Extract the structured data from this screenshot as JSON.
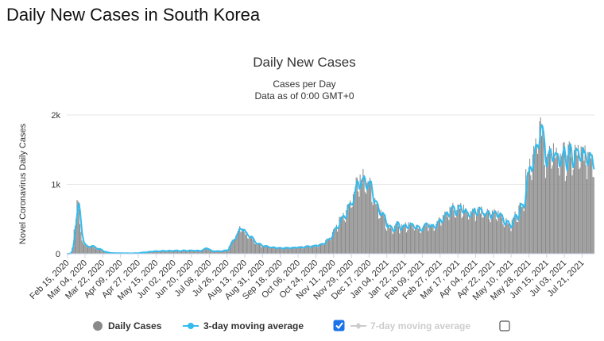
{
  "page": {
    "heading": "Daily New Cases in South Korea"
  },
  "chart_data": {
    "type": "bar",
    "title": "Daily New Cases",
    "subtitle_lines": [
      "Cases per Day",
      "Data as of 0:00 GMT+0"
    ],
    "ylabel": "Novel Coronavirus Daily Cases",
    "xlabel": "",
    "ylim": [
      0,
      2000
    ],
    "yticks": [
      {
        "value": 0,
        "label": "0"
      },
      {
        "value": 1000,
        "label": "1k"
      },
      {
        "value": 2000,
        "label": "2k"
      }
    ],
    "date_range": [
      "2020-02-15",
      "2021-08-02"
    ],
    "x_tick_labels": [
      "Feb 15, 2020",
      "Mar 04, 2020",
      "Mar 22, 2020",
      "Apr 09, 2020",
      "Apr 27, 2020",
      "May 15, 2020",
      "Jun 02, 2020",
      "Jun 20, 2020",
      "Jul 08, 2020",
      "Jul 26, 2020",
      "Aug 13, 2020",
      "Aug 31, 2020",
      "Sep 18, 2020",
      "Oct 06, 2020",
      "Oct 24, 2020",
      "Nov 11, 2020",
      "Nov 29, 2020",
      "Dec 17, 2020",
      "Jan 04, 2021",
      "Jan 22, 2021",
      "Feb 09, 2021",
      "Feb 27, 2021",
      "Mar 17, 2021",
      "Apr 04, 2021",
      "Apr 22, 2021",
      "May 10, 2021",
      "May 28, 2021",
      "Jun 15, 2021",
      "Jul 03, 2021",
      "Jul 21, 2021"
    ],
    "series_anchor_note": "daily values estimated from chart; anchors as [day index from Feb 15 2020, cases]",
    "daily_anchors": [
      [
        0,
        0
      ],
      [
        2,
        2
      ],
      [
        4,
        20
      ],
      [
        6,
        150
      ],
      [
        8,
        480
      ],
      [
        10,
        780
      ],
      [
        12,
        600
      ],
      [
        14,
        300
      ],
      [
        17,
        140
      ],
      [
        20,
        100
      ],
      [
        24,
        120
      ],
      [
        28,
        90
      ],
      [
        32,
        70
      ],
      [
        36,
        40
      ],
      [
        40,
        20
      ],
      [
        45,
        10
      ],
      [
        55,
        8
      ],
      [
        65,
        6
      ],
      [
        72,
        12
      ],
      [
        78,
        20
      ],
      [
        85,
        35
      ],
      [
        95,
        40
      ],
      [
        105,
        45
      ],
      [
        115,
        45
      ],
      [
        125,
        50
      ],
      [
        135,
        45
      ],
      [
        141,
        90
      ],
      [
        145,
        40
      ],
      [
        155,
        40
      ],
      [
        162,
        50
      ],
      [
        168,
        200
      ],
      [
        172,
        280
      ],
      [
        176,
        380
      ],
      [
        180,
        300
      ],
      [
        185,
        250
      ],
      [
        190,
        170
      ],
      [
        195,
        130
      ],
      [
        205,
        100
      ],
      [
        215,
        80
      ],
      [
        225,
        90
      ],
      [
        235,
        95
      ],
      [
        245,
        110
      ],
      [
        255,
        120
      ],
      [
        265,
        210
      ],
      [
        270,
        320
      ],
      [
        274,
        420
      ],
      [
        278,
        520
      ],
      [
        282,
        600
      ],
      [
        286,
        680
      ],
      [
        290,
        900
      ],
      [
        294,
        1000
      ],
      [
        298,
        1030
      ],
      [
        302,
        1150
      ],
      [
        306,
        1000
      ],
      [
        310,
        850
      ],
      [
        314,
        700
      ],
      [
        318,
        600
      ],
      [
        322,
        500
      ],
      [
        326,
        400
      ],
      [
        330,
        380
      ],
      [
        335,
        420
      ],
      [
        340,
        360
      ],
      [
        345,
        430
      ],
      [
        350,
        420
      ],
      [
        355,
        380
      ],
      [
        360,
        400
      ],
      [
        365,
        440
      ],
      [
        370,
        420
      ],
      [
        375,
        460
      ],
      [
        380,
        500
      ],
      [
        385,
        600
      ],
      [
        390,
        660
      ],
      [
        395,
        640
      ],
      [
        400,
        680
      ],
      [
        405,
        600
      ],
      [
        410,
        620
      ],
      [
        415,
        640
      ],
      [
        420,
        600
      ],
      [
        425,
        580
      ],
      [
        430,
        560
      ],
      [
        435,
        600
      ],
      [
        440,
        560
      ],
      [
        445,
        450
      ],
      [
        450,
        420
      ],
      [
        455,
        580
      ],
      [
        460,
        680
      ],
      [
        463,
        800
      ],
      [
        466,
        1200
      ],
      [
        469,
        1300
      ],
      [
        472,
        1450
      ],
      [
        475,
        1600
      ],
      [
        478,
        1800
      ],
      [
        481,
        1700
      ],
      [
        484,
        1500
      ],
      [
        486,
        1450
      ],
      [
        488,
        1420
      ]
    ],
    "series": [
      {
        "name": "Daily Cases",
        "color": "#8a8a8a",
        "visible": true
      },
      {
        "name": "3-day moving average",
        "color": "#33bbee",
        "visible": true
      },
      {
        "name": "7-day moving average",
        "color": "#cccccc",
        "visible": false
      }
    ]
  },
  "legend": {
    "daily_label": "Daily Cases",
    "avg3_label": "3-day moving average",
    "avg3_checked": true,
    "avg7_label": "7-day moving average",
    "avg7_checked": false
  }
}
